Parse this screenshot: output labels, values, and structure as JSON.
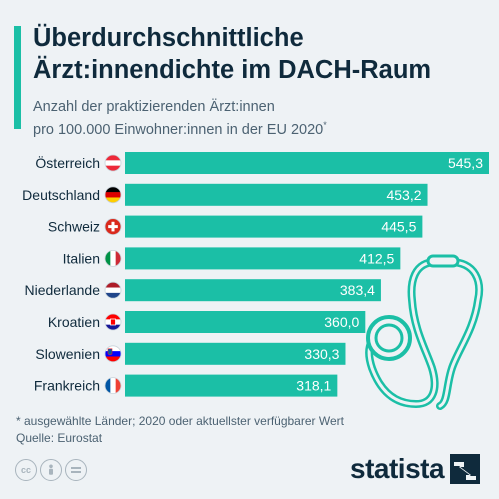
{
  "header": {
    "title_line1": "Überdurchschnittliche",
    "title_line2": "Ärzt:innendichte im DACH-Raum",
    "subtitle_line1": "Anzahl der praktizierenden Ärzt:innen",
    "subtitle_line2": "pro 100.000 Einwohner:innen in der EU 2020",
    "subtitle_mark": "*"
  },
  "chart_data": {
    "type": "bar",
    "orientation": "horizontal",
    "categories": [
      "Österreich",
      "Deutschland",
      "Schweiz",
      "Italien",
      "Niederlande",
      "Kroatien",
      "Slowenien",
      "Frankreich"
    ],
    "values": [
      545.3,
      453.2,
      445.5,
      412.5,
      383.4,
      360.0,
      330.3,
      318.1
    ],
    "value_labels": [
      "545,3",
      "453,2",
      "445,5",
      "412,5",
      "383,4",
      "360,0",
      "330,3",
      "318,1"
    ],
    "flags": [
      "flag-austria",
      "flag-germany",
      "flag-switzerland",
      "flag-italy",
      "flag-netherlands",
      "flag-croatia",
      "flag-slovenia",
      "flag-france"
    ],
    "bar_color": "#1bbfa6",
    "label_color": "#ffffff",
    "grid": false,
    "legend": "none"
  },
  "illustration": {
    "icon": "stethoscope-icon",
    "color": "#1bbfa6"
  },
  "footer": {
    "footnote": "* ausgewählte Länder; 2020 oder aktuellster verfügbarer Wert",
    "source": "Quelle: Eurostat",
    "license_icons": [
      "cc-icon",
      "person-icon",
      "equals-icon"
    ],
    "brand": "statista"
  },
  "colors": {
    "accent": "#1bbfa6",
    "title": "#0f2a3c",
    "text": "#4c6272",
    "background": "#eef2f5"
  }
}
